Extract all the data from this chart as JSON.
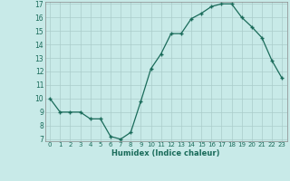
{
  "x": [
    0,
    1,
    2,
    3,
    4,
    5,
    6,
    7,
    8,
    9,
    10,
    11,
    12,
    13,
    14,
    15,
    16,
    17,
    18,
    19,
    20,
    21,
    22,
    23
  ],
  "y": [
    10,
    9,
    9,
    9,
    8.5,
    8.5,
    7.2,
    7.0,
    7.5,
    9.8,
    12.2,
    13.3,
    14.8,
    14.8,
    15.9,
    16.3,
    16.8,
    17.0,
    17.0,
    16.0,
    15.3,
    14.5,
    12.8,
    11.5
  ],
  "xlabel": "Humidex (Indice chaleur)",
  "ylim": [
    7,
    17
  ],
  "xlim": [
    -0.5,
    23.5
  ],
  "yticks": [
    7,
    8,
    9,
    10,
    11,
    12,
    13,
    14,
    15,
    16,
    17
  ],
  "xticks": [
    0,
    1,
    2,
    3,
    4,
    5,
    6,
    7,
    8,
    9,
    10,
    11,
    12,
    13,
    14,
    15,
    16,
    17,
    18,
    19,
    20,
    21,
    22,
    23
  ],
  "line_color": "#1a6b5a",
  "marker_color": "#1a6b5a",
  "bg_color": "#c8eae8",
  "grid_color": "#aaccca"
}
